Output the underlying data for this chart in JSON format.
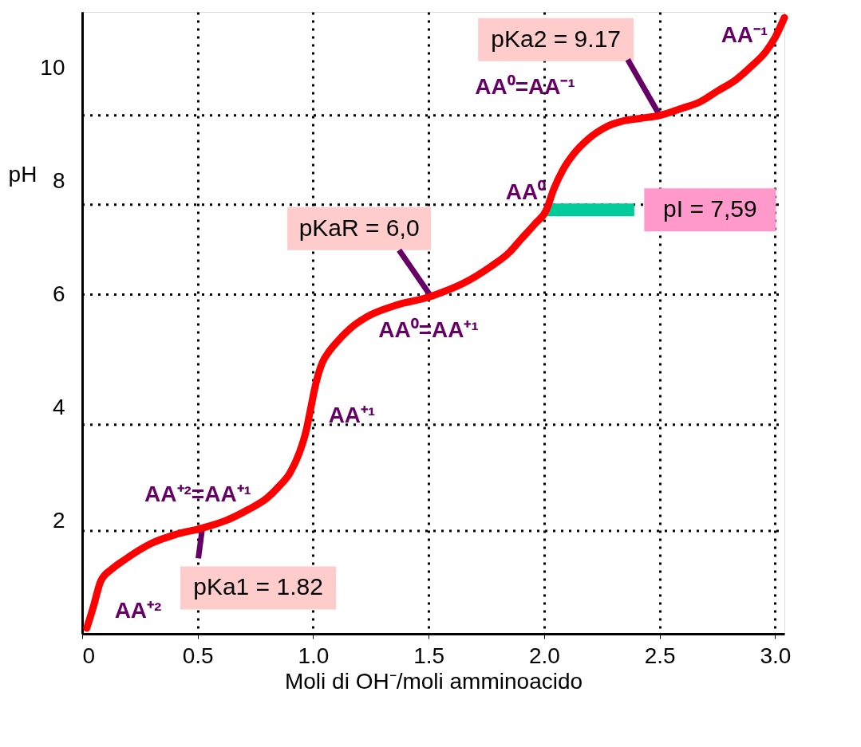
{
  "chart_data": {
    "type": "line",
    "xlabel": "Moli di OH⁻/moli amminoacido",
    "ylabel": "pH",
    "x": [
      0.02,
      0.05,
      0.08,
      0.13,
      0.18,
      0.3,
      0.4,
      0.52,
      0.62,
      0.72,
      0.8,
      0.85,
      0.9,
      0.94,
      0.97,
      0.99,
      1.01,
      1.04,
      1.07,
      1.1,
      1.16,
      1.23,
      1.35,
      1.51,
      1.65,
      1.77,
      1.85,
      1.9,
      1.96,
      2.01,
      2.04,
      2.08,
      2.13,
      2.19,
      2.27,
      2.35,
      2.42,
      2.5,
      2.6,
      2.67,
      2.75,
      2.83,
      2.9,
      2.96,
      3.0,
      3.04
    ],
    "series": [
      {
        "color": "#ff0000",
        "values": [
          0.1,
          0.5,
          0.93,
          1.15,
          1.3,
          1.6,
          1.75,
          1.87,
          2.0,
          2.2,
          2.4,
          2.6,
          2.85,
          3.2,
          3.6,
          4.0,
          4.4,
          4.8,
          5.0,
          5.15,
          5.4,
          5.6,
          5.8,
          5.97,
          6.2,
          6.5,
          6.75,
          6.98,
          7.25,
          7.5,
          7.85,
          8.2,
          8.5,
          8.75,
          8.97,
          9.08,
          9.12,
          9.17,
          9.3,
          9.4,
          9.6,
          9.8,
          10.05,
          10.3,
          10.55,
          10.9
        ]
      }
    ],
    "xlim": [
      0,
      3.04
    ],
    "ylim": [
      0,
      11
    ],
    "xticks": [
      0,
      0.5,
      {
        "value": 1,
        "label": "1.0"
      },
      1.5,
      {
        "value": 2,
        "label": "2.0"
      },
      2.5,
      {
        "value": 3,
        "label": "3.0"
      }
    ],
    "yticks": [
      2,
      4,
      6,
      8,
      10
    ],
    "grid": "x",
    "marker": "none",
    "line_style": "solid",
    "ref_lines": [
      {
        "axis": "y",
        "value": 1.82,
        "line_style": "dotted"
      },
      {
        "axis": "y",
        "value": 3.7,
        "line_style": "dotted"
      },
      {
        "axis": "y",
        "value": 6.0,
        "line_style": "dotted"
      },
      {
        "axis": "y",
        "value": 7.59,
        "line_style": "dotted"
      },
      {
        "axis": "y",
        "value": 9.17,
        "line_style": "dotted"
      }
    ],
    "annotations": [
      {
        "text": "pKa1 = 1.82",
        "x": 0.52,
        "y": 1.87
      },
      {
        "text": "pKaR = 6,0",
        "x": 1.51,
        "y": 5.97
      },
      {
        "text": "pI = 7,59",
        "x": 2.01,
        "y": 7.5
      },
      {
        "text": "pKa2 = 9.17",
        "x": 2.5,
        "y": 9.17
      },
      "AA⁺²",
      "AA⁺²=AA⁺¹",
      "AA⁺¹",
      "AA⁰=AA⁺¹",
      "AA⁰",
      "AA⁰=AA⁻¹",
      "AA⁻¹"
    ]
  }
}
